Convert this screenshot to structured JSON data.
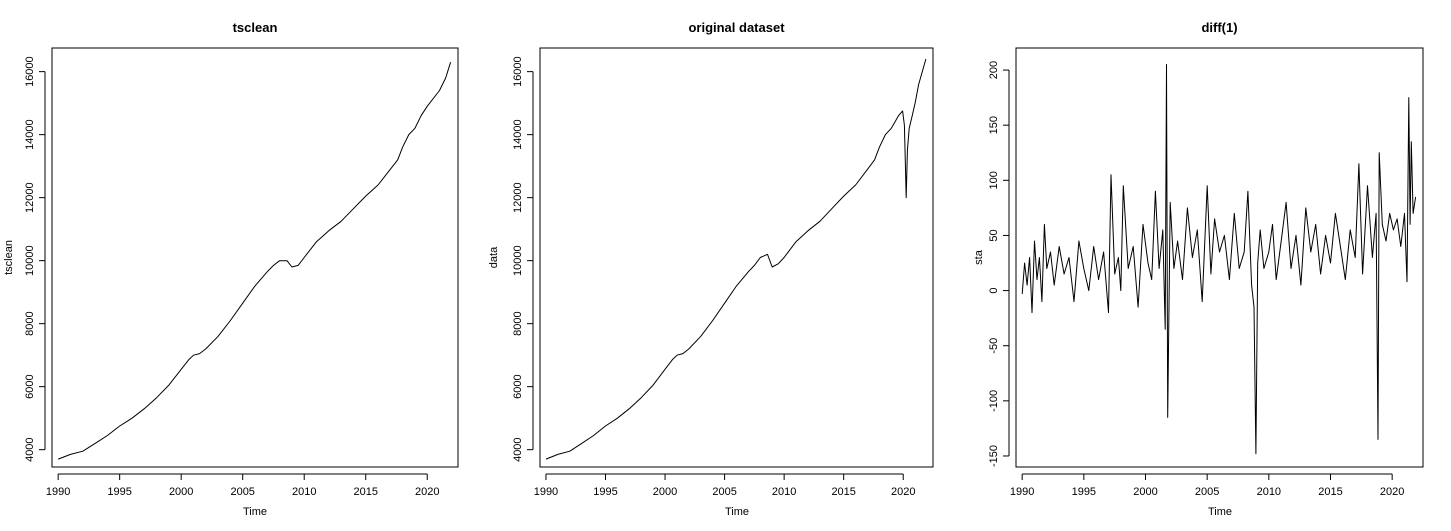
{
  "chart_data": [
    {
      "type": "line",
      "title": "tsclean",
      "xlabel": "Time",
      "ylabel": "tsclean",
      "xlim": [
        1989.5,
        2022.5
      ],
      "ylim": [
        3450,
        16750
      ],
      "x_ticks": [
        1990,
        1995,
        2000,
        2005,
        2010,
        2015,
        2020
      ],
      "y_ticks": [
        4000,
        6000,
        8000,
        10000,
        12000,
        14000,
        16000
      ],
      "series": [
        {
          "x": [
            1990.0,
            1991.0,
            1992.0,
            1993.0,
            1994.0,
            1995.0,
            1996.0,
            1997.0,
            1998.0,
            1999.0,
            2000.0,
            2000.6,
            2001.0,
            2001.5,
            2002.0,
            2003.0,
            2004.0,
            2005.0,
            2006.0,
            2007.0,
            2007.5,
            2008.0,
            2008.6,
            2009.0,
            2009.5,
            2010.0,
            2011.0,
            2012.0,
            2013.0,
            2014.0,
            2015.0,
            2016.0,
            2017.0,
            2017.6,
            2018.0,
            2018.5,
            2019.0,
            2019.5,
            2020.0,
            2021.0,
            2021.5,
            2021.9
          ],
          "y": [
            3700,
            3850,
            3950,
            4200,
            4450,
            4750,
            5000,
            5300,
            5650,
            6050,
            6550,
            6850,
            7000,
            7050,
            7200,
            7600,
            8100,
            8650,
            9200,
            9650,
            9850,
            10000,
            10000,
            9800,
            9850,
            10100,
            10600,
            10950,
            11250,
            11650,
            12050,
            12400,
            12900,
            13200,
            13600,
            14000,
            14200,
            14600,
            14900,
            15400,
            15800,
            16300
          ]
        }
      ]
    },
    {
      "type": "line",
      "title": "original dataset",
      "xlabel": "Time",
      "ylabel": "data",
      "xlim": [
        1989.5,
        2022.5
      ],
      "ylim": [
        3450,
        16750
      ],
      "x_ticks": [
        1990,
        1995,
        2000,
        2005,
        2010,
        2015,
        2020
      ],
      "y_ticks": [
        4000,
        6000,
        8000,
        10000,
        12000,
        14000,
        16000
      ],
      "series": [
        {
          "x": [
            1990.0,
            1991.0,
            1992.0,
            1993.0,
            1994.0,
            1995.0,
            1996.0,
            1997.0,
            1998.0,
            1999.0,
            2000.0,
            2000.6,
            2001.0,
            2001.5,
            2002.0,
            2003.0,
            2004.0,
            2005.0,
            2006.0,
            2007.0,
            2007.5,
            2008.0,
            2008.6,
            2009.0,
            2009.5,
            2010.0,
            2011.0,
            2012.0,
            2013.0,
            2014.0,
            2015.0,
            2016.0,
            2017.0,
            2017.6,
            2018.0,
            2018.5,
            2019.0,
            2019.6,
            2019.95,
            2020.1,
            2020.25,
            2020.35,
            2020.5,
            2020.75,
            2021.0,
            2021.3,
            2021.6,
            2021.9
          ],
          "y": [
            3700,
            3850,
            3950,
            4200,
            4450,
            4750,
            5000,
            5300,
            5650,
            6050,
            6550,
            6850,
            7000,
            7050,
            7200,
            7600,
            8100,
            8650,
            9200,
            9650,
            9850,
            10100,
            10200,
            9800,
            9900,
            10100,
            10600,
            10950,
            11250,
            11650,
            12050,
            12400,
            12900,
            13200,
            13600,
            14000,
            14200,
            14600,
            14750,
            14300,
            12000,
            13500,
            14200,
            14600,
            15000,
            15600,
            16000,
            16400
          ]
        }
      ]
    },
    {
      "type": "line",
      "title": "diff(1)",
      "xlabel": "Time",
      "ylabel": "sta",
      "xlim": [
        1989.5,
        2022.5
      ],
      "ylim": [
        -160,
        220
      ],
      "x_ticks": [
        1990,
        1995,
        2000,
        2005,
        2010,
        2015,
        2020
      ],
      "y_ticks": [
        -150,
        -100,
        -50,
        0,
        50,
        100,
        150,
        200
      ],
      "series": [
        {
          "x": [
            1990.0,
            1990.2,
            1990.4,
            1990.6,
            1990.8,
            1991.0,
            1991.2,
            1991.4,
            1991.6,
            1991.8,
            1992.0,
            1992.3,
            1992.6,
            1993.0,
            1993.4,
            1993.8,
            1994.2,
            1994.6,
            1995.0,
            1995.4,
            1995.8,
            1996.2,
            1996.6,
            1997.0,
            1997.2,
            1997.5,
            1997.8,
            1998.0,
            1998.2,
            1998.6,
            1999.0,
            1999.4,
            1999.8,
            2000.2,
            2000.5,
            2000.8,
            2001.1,
            2001.4,
            2001.6,
            2001.7,
            2001.8,
            2002.0,
            2002.3,
            2002.6,
            2003.0,
            2003.4,
            2003.8,
            2004.2,
            2004.6,
            2005.0,
            2005.3,
            2005.6,
            2006.0,
            2006.4,
            2006.8,
            2007.2,
            2007.6,
            2008.0,
            2008.3,
            2008.6,
            2008.8,
            2008.95,
            2009.1,
            2009.3,
            2009.6,
            2010.0,
            2010.3,
            2010.6,
            2011.0,
            2011.4,
            2011.8,
            2012.2,
            2012.6,
            2013.0,
            2013.4,
            2013.8,
            2014.2,
            2014.6,
            2015.0,
            2015.4,
            2015.8,
            2016.2,
            2016.6,
            2017.0,
            2017.3,
            2017.6,
            2018.0,
            2018.4,
            2018.7,
            2018.85,
            2018.95,
            2019.2,
            2019.5,
            2019.8,
            2020.1,
            2020.4,
            2020.7,
            2021.0,
            2021.2,
            2021.35,
            2021.45,
            2021.55,
            2021.7,
            2021.9
          ],
          "y": [
            -3,
            25,
            5,
            30,
            -20,
            45,
            10,
            30,
            -10,
            60,
            20,
            35,
            5,
            40,
            15,
            30,
            -10,
            45,
            20,
            0,
            40,
            10,
            35,
            -20,
            105,
            15,
            30,
            0,
            95,
            20,
            40,
            -15,
            60,
            25,
            10,
            90,
            20,
            55,
            -35,
            205,
            -115,
            80,
            20,
            45,
            10,
            75,
            30,
            55,
            -10,
            95,
            15,
            65,
            35,
            50,
            10,
            70,
            20,
            35,
            90,
            5,
            -15,
            -148,
            25,
            55,
            20,
            35,
            60,
            10,
            45,
            80,
            20,
            50,
            5,
            75,
            35,
            60,
            15,
            50,
            25,
            70,
            40,
            10,
            55,
            30,
            115,
            15,
            95,
            30,
            70,
            -135,
            125,
            60,
            45,
            70,
            55,
            65,
            40,
            70,
            8,
            175,
            60,
            135,
            70,
            85
          ]
        }
      ]
    }
  ]
}
